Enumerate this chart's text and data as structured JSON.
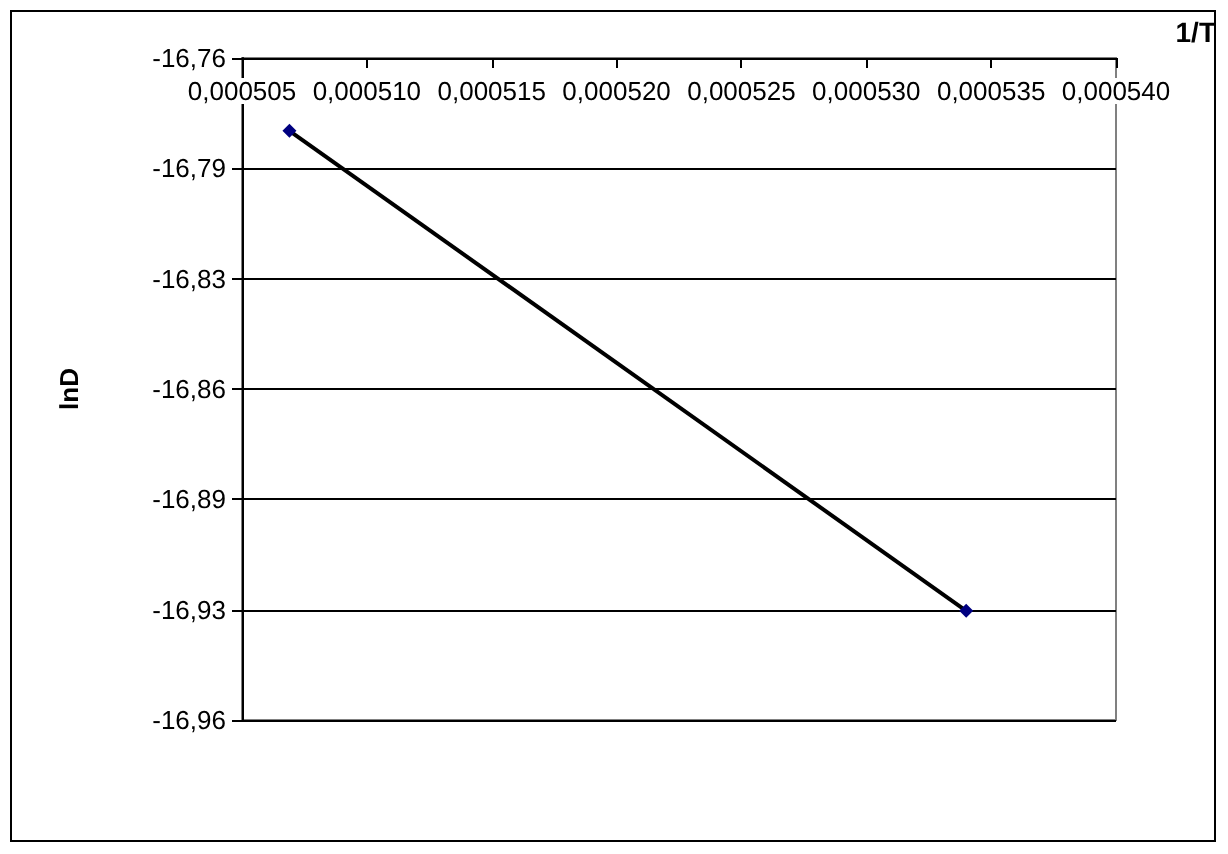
{
  "chart_data": {
    "type": "line",
    "xlabel": "1/T",
    "ylabel": "lnD",
    "x": [
      0.0005069,
      0.000534
    ],
    "series": [
      {
        "color": "#000000",
        "colors": [
          "#000080",
          "#000080"
        ],
        "values": [
          -16.782,
          -16.927
        ]
      }
    ],
    "xlim": [
      0.000505,
      0.00054
    ],
    "xticks": [
      {
        "value": 0.000505,
        "label": "0,000505"
      },
      {
        "value": 0.00051,
        "label": "0,000510"
      },
      {
        "value": 0.000515,
        "label": "0,000515"
      },
      {
        "value": 0.00052,
        "label": "0,000520"
      },
      {
        "value": 0.000525,
        "label": "0,000525"
      },
      {
        "value": 0.00053,
        "label": "0,000530"
      },
      {
        "value": 0.000535,
        "label": "0,000535"
      },
      {
        "value": 0.00054,
        "label": "0,000540"
      }
    ],
    "ylim": [
      -16.96,
      -16.76
    ],
    "yticks": [
      {
        "value": -16.96,
        "label": "-16,96"
      },
      {
        "value": -16.92667,
        "label": "-16,93"
      },
      {
        "value": -16.89333,
        "label": "-16,89"
      },
      {
        "value": -16.86,
        "label": "-16,86"
      },
      {
        "value": -16.82667,
        "label": "-16,83"
      },
      {
        "value": -16.79333,
        "label": "-16,79"
      },
      {
        "value": -16.76,
        "label": "-16,76"
      }
    ],
    "grid": "y",
    "marker": "diamond"
  }
}
